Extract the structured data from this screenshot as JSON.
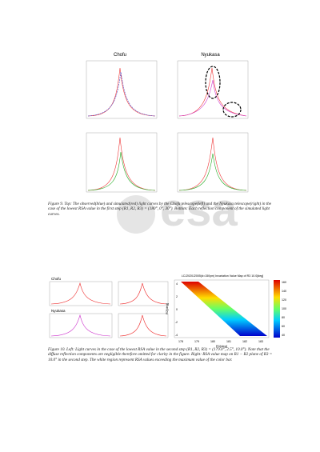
{
  "figure9": {
    "panels": [
      "Chofu",
      "Nyukasa"
    ],
    "caption": "Figure 9. Top: The observed(blue) and simulated(red) light curves by the Chofu telescope(left) and the Nyukasa telescope(right) in the case of the lowest RSA value in the first step (R1, R2, R3) = (180°, 0°, 30°). Bottom: Each reflection component of the simulated light curves."
  },
  "watermark": "esa",
  "figure10": {
    "panels": [
      "Chofu",
      "Nyukasa"
    ],
    "map_title": "LCJ2020J2005(d=150ym) Invariation Value Map of R3 10.0[deg]",
    "x_label": "R1[deg]",
    "y_label": "R2[deg]",
    "x_ticks": [
      "178",
      "179",
      "180",
      "181",
      "182",
      "183"
    ],
    "y_ticks": [
      "4",
      "2",
      "0",
      "-2",
      "-4"
    ],
    "colorbar_ticks": [
      "160",
      "140",
      "120",
      "100",
      "80",
      "60",
      "40"
    ],
    "caption": "Figure 10. Left: Light curves in the case of the lowest RSA value in the second step (R1, R2, R3) = (179.0°, 2.5°, 10.0°). Note that the diffuse reflection components are negligible therefore omitted for clarity in the figure. Right: RSA value map on R1 − R2 plane of R3 = 10.0° in the second step. The white region represent RSA values exceeding the maximum value of the color bar."
  }
}
